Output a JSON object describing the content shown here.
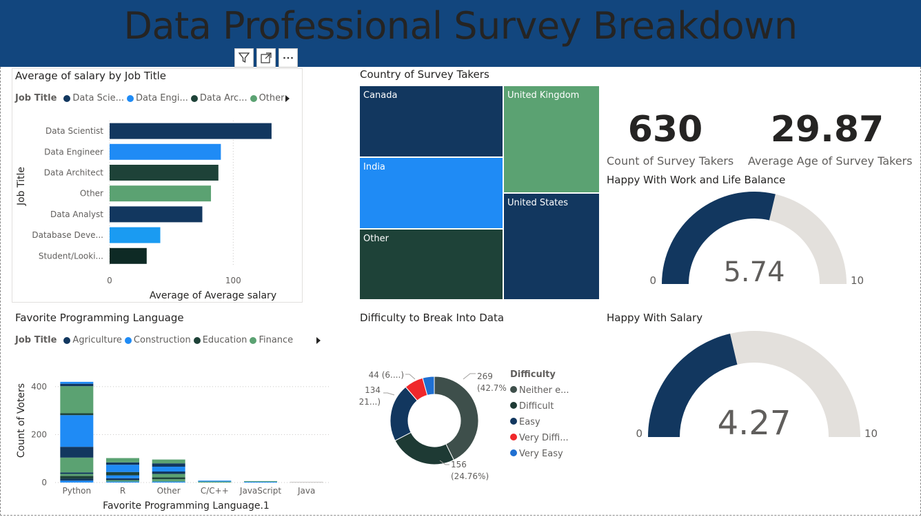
{
  "header": {
    "title": "Data Professional Survey Breakdown"
  },
  "colors": {
    "header_bg": "#12467e",
    "navy": "#12375f",
    "blue": "#1f8bf5",
    "dark_green": "#1e4238",
    "green": "#5ba272",
    "very_dark": "#0e2a25",
    "bright_blue": "#1a9bf2",
    "gauge_fill": "#12375f",
    "gauge_track": "#e3e0dc",
    "red": "#f0282b",
    "neither": "#3e4f4b"
  },
  "toolbar": {
    "icons": [
      "filter-icon",
      "focus-mode-icon",
      "more-options-icon"
    ]
  },
  "salary_chart": {
    "title": "Average of salary by Job Title",
    "legend_title": "Job Title",
    "legend": [
      {
        "label": "Data Scie...",
        "color": "#12375f"
      },
      {
        "label": "Data Engi...",
        "color": "#1f8bf5"
      },
      {
        "label": "Data Arc...",
        "color": "#1e4238"
      },
      {
        "label": "Other",
        "color": "#5ba272"
      }
    ]
  },
  "treemap": {
    "title": "Country of Survey Takers",
    "cells": [
      {
        "label": "Canada",
        "color": "#12375f"
      },
      {
        "label": "United Kingdom",
        "color": "#5ba272"
      },
      {
        "label": "India",
        "color": "#1f8bf5"
      },
      {
        "label": "United States",
        "color": "#12375f"
      },
      {
        "label": "Other",
        "color": "#1e4238"
      }
    ]
  },
  "kpis": {
    "count": {
      "value": "630",
      "label": "Count of Survey Takers"
    },
    "age": {
      "value": "29.87",
      "label": "Average  Age of  Survey Takers"
    }
  },
  "gauge_work": {
    "title": "Happy With Work and Life Balance",
    "value": 5.74,
    "value_label": "5.74",
    "min": "0",
    "max": "10",
    "min_value": 0,
    "max_value": 10
  },
  "gauge_salary": {
    "title": "Happy With Salary",
    "value": 4.27,
    "value_label": "4.27",
    "min": "0",
    "max": "10",
    "min_value": 0,
    "max_value": 10
  },
  "lang_chart": {
    "title": "Favorite Programming Language",
    "legend_title": "Job Title",
    "legend": [
      {
        "label": "Agriculture",
        "color": "#12375f"
      },
      {
        "label": "Construction",
        "color": "#1f8bf5"
      },
      {
        "label": "Education",
        "color": "#1e4238"
      },
      {
        "label": "Finance",
        "color": "#5ba272"
      }
    ]
  },
  "donut": {
    "title": "Difficulty to Break Into Data",
    "legend_title": "Difficulty",
    "legend": [
      {
        "label": "Neither e...",
        "color": "#3e4f4b"
      },
      {
        "label": "Difficult",
        "color": "#1e3a34"
      },
      {
        "label": "Easy",
        "color": "#12375f"
      },
      {
        "label": "Very Diffi...",
        "color": "#f0282b"
      },
      {
        "label": "Very Easy",
        "color": "#1f6fd1"
      }
    ]
  },
  "chart_data": [
    {
      "type": "bar",
      "orientation": "horizontal",
      "title": "Average of salary by Job Title",
      "xlabel": "Average of Average salary",
      "ylabel": "Job Title",
      "categories": [
        "Data Scientist",
        "Data Engineer",
        "Data Architect",
        "Other",
        "Data Analyst",
        "Database Deve...",
        "Student/Looki..."
      ],
      "values": [
        131,
        90,
        88,
        82,
        75,
        41,
        30
      ],
      "colors": [
        "#12375f",
        "#1f8bf5",
        "#1e4238",
        "#5ba272",
        "#12375f",
        "#1a9bf2",
        "#0e2a25"
      ],
      "xlim": [
        0,
        145
      ],
      "xticks": [
        "0",
        "100"
      ],
      "xtick_values": [
        0,
        100
      ],
      "grid": true
    },
    {
      "type": "pie",
      "variant": "donut",
      "title": "Difficulty to Break Into Data",
      "categories": [
        "Neither easy nor difficult",
        "Difficult",
        "Easy",
        "Very Difficult",
        "Very Easy"
      ],
      "values": [
        269,
        156,
        134,
        44,
        27
      ],
      "colors": [
        "#3e4f4b",
        "#1e3a34",
        "#12375f",
        "#f0282b",
        "#1f6fd1"
      ],
      "data_labels": [
        {
          "value": "269",
          "pct": "(42.7%)"
        },
        {
          "value": "156",
          "pct": "(24.76%)"
        },
        {
          "value": "134",
          "pct": "(21...)"
        },
        {
          "value": "44 (6....)",
          "pct": ""
        }
      ]
    },
    {
      "type": "bar",
      "orientation": "vertical",
      "stacked": true,
      "title": "Favorite Programming Language",
      "xlabel": "Favorite Programming Language.1",
      "ylabel": "Count of Voters",
      "categories": [
        "Python",
        "R",
        "Other",
        "C/C++",
        "JavaScript",
        "Java"
      ],
      "totals": [
        420,
        102,
        96,
        8,
        6,
        3
      ],
      "ylim": [
        0,
        460
      ],
      "yticks": [
        "0",
        "200",
        "400"
      ],
      "ytick_values": [
        0,
        200,
        400
      ],
      "grid": true,
      "stacks": [
        [
          {
            "value": 8,
            "color": "#1f8bf5"
          },
          {
            "value": 8,
            "color": "#12375f"
          },
          {
            "value": 12,
            "color": "#1e4238"
          },
          {
            "value": 8,
            "color": "#5ba272"
          },
          {
            "value": 6,
            "color": "#12375f"
          },
          {
            "value": 62,
            "color": "#5ba272"
          },
          {
            "value": 45,
            "color": "#12375f"
          },
          {
            "value": 132,
            "color": "#1f8bf5"
          },
          {
            "value": 8,
            "color": "#1e4238"
          },
          {
            "value": 113,
            "color": "#5ba272"
          },
          {
            "value": 10,
            "color": "#12375f"
          },
          {
            "value": 8,
            "color": "#1f8bf5"
          }
        ],
        [
          {
            "value": 4,
            "color": "#1f8bf5"
          },
          {
            "value": 6,
            "color": "#5ba272"
          },
          {
            "value": 8,
            "color": "#12375f"
          },
          {
            "value": 12,
            "color": "#1f8bf5"
          },
          {
            "value": 14,
            "color": "#1e4238"
          },
          {
            "value": 30,
            "color": "#1f8bf5"
          },
          {
            "value": 10,
            "color": "#12375f"
          },
          {
            "value": 18,
            "color": "#5ba272"
          }
        ],
        [
          {
            "value": 4,
            "color": "#1f8bf5"
          },
          {
            "value": 10,
            "color": "#5ba272"
          },
          {
            "value": 8,
            "color": "#1e4238"
          },
          {
            "value": 14,
            "color": "#5ba272"
          },
          {
            "value": 10,
            "color": "#12375f"
          },
          {
            "value": 20,
            "color": "#1f8bf5"
          },
          {
            "value": 14,
            "color": "#12375f"
          },
          {
            "value": 16,
            "color": "#5ba272"
          }
        ],
        [
          {
            "value": 4,
            "color": "#5ba272"
          },
          {
            "value": 4,
            "color": "#1f8bf5"
          }
        ],
        [
          {
            "value": 3,
            "color": "#1f8bf5"
          },
          {
            "value": 3,
            "color": "#5ba272"
          }
        ],
        [
          {
            "value": 3,
            "color": "#c8c6c4"
          }
        ]
      ]
    }
  ]
}
